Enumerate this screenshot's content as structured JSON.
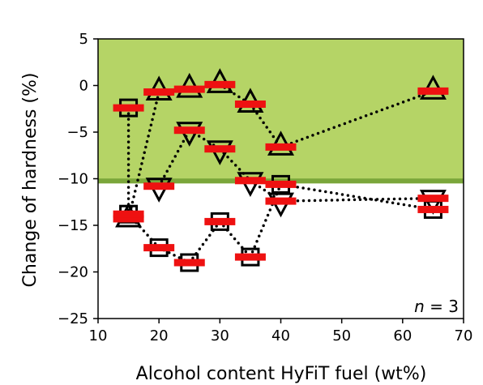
{
  "chart_data": {
    "type": "scatter",
    "xlabel": "Alcohol content HyFiT fuel (wt%)",
    "ylabel": "Change of hardness (%)",
    "xlim": [
      10,
      70
    ],
    "ylim": [
      -25,
      5
    ],
    "xticks": [
      10,
      20,
      30,
      40,
      50,
      60,
      70
    ],
    "yticks": [
      5,
      0,
      -5,
      -10,
      -15,
      -20,
      -25
    ],
    "ytick_labels": [
      "5",
      "0",
      "−5",
      "−10",
      "−15",
      "−20",
      "−25"
    ],
    "annotation": {
      "italic": "n",
      "rest": " = 3"
    },
    "shaded_region": {
      "y_from": -10.5,
      "y_to": 5,
      "color": "#b5d466",
      "boundary_color": "#7aa63a"
    },
    "colors": {
      "mean_bar": "#ee1111",
      "marker": "#000000"
    },
    "grid": false,
    "series": [
      {
        "marker": "triangle-up",
        "points": [
          [
            15,
            -14.3
          ],
          [
            20,
            -0.7
          ],
          [
            25,
            -0.4
          ],
          [
            30,
            0.1
          ],
          [
            35,
            -2.0
          ],
          [
            40,
            -6.6
          ],
          [
            65,
            -0.6
          ]
        ]
      },
      {
        "marker": "triangle-down",
        "points": [
          [
            20,
            -10.8
          ],
          [
            25,
            -4.8
          ],
          [
            30,
            -6.8
          ],
          [
            35,
            -10.2
          ],
          [
            40,
            -12.4
          ],
          [
            65,
            -12.1
          ]
        ]
      },
      {
        "marker": "square",
        "points": [
          [
            15,
            -2.4
          ],
          [
            15,
            -13.8
          ],
          [
            20,
            -17.4
          ],
          [
            25,
            -19.0
          ],
          [
            30,
            -14.6
          ],
          [
            35,
            -18.4
          ],
          [
            40,
            -10.6
          ],
          [
            65,
            -13.3
          ]
        ]
      }
    ]
  }
}
